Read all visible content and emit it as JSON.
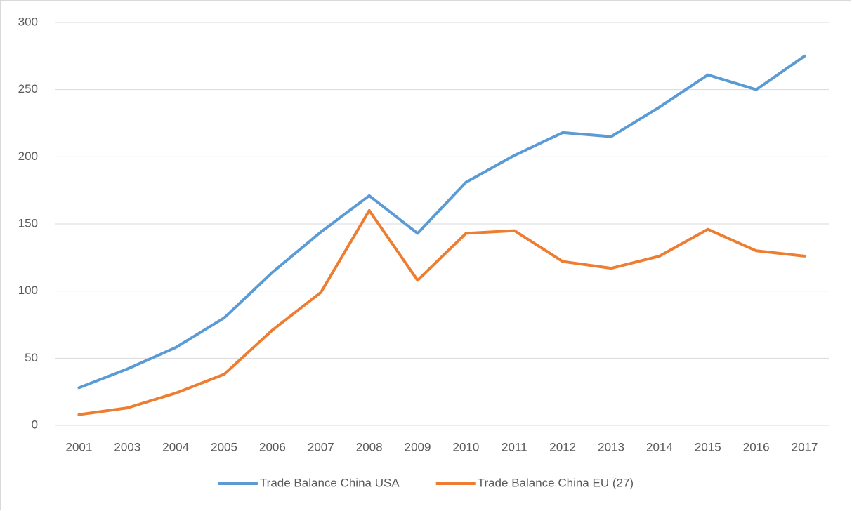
{
  "chart_data": {
    "type": "line",
    "categories": [
      "2001",
      "2003",
      "2004",
      "2005",
      "2006",
      "2007",
      "2008",
      "2009",
      "2010",
      "2011",
      "2012",
      "2013",
      "2014",
      "2015",
      "2016",
      "2017"
    ],
    "series": [
      {
        "name": "Trade Balance China USA",
        "color": "#5b9bd5",
        "values": [
          28,
          42,
          58,
          80,
          114,
          144,
          171,
          143,
          181,
          201,
          218,
          215,
          237,
          261,
          250,
          275
        ]
      },
      {
        "name": "Trade Balance China EU (27)",
        "color": "#ed7d31",
        "values": [
          8,
          13,
          24,
          38,
          71,
          99,
          160,
          108,
          143,
          145,
          122,
          117,
          126,
          146,
          130,
          126
        ]
      }
    ],
    "ylim": [
      0,
      300
    ],
    "yticks": [
      0,
      50,
      100,
      150,
      200,
      250,
      300
    ],
    "grid": true,
    "legend": "bottom"
  }
}
